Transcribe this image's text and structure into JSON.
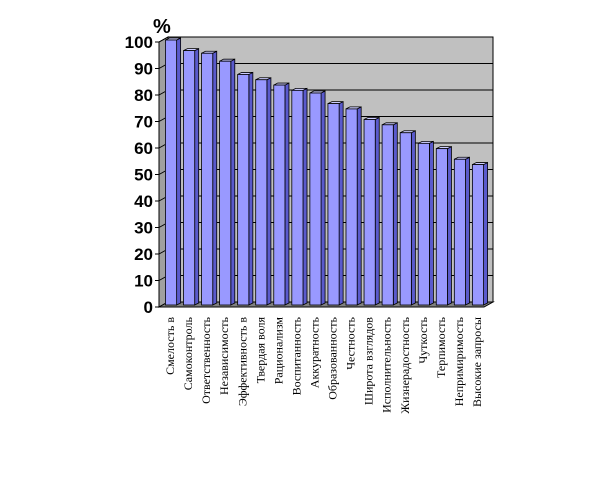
{
  "chart_data": {
    "type": "bar",
    "ylabel": "%",
    "ylim": [
      0,
      100
    ],
    "yticks": [
      0,
      10,
      20,
      30,
      40,
      50,
      60,
      70,
      80,
      90,
      100
    ],
    "grid": true,
    "legend": "none",
    "colors": {
      "plot_bg": "#c0c0c0",
      "bar_front": "#9999ff",
      "bar_side": "#5a5acc",
      "bar_top": "#ccccff",
      "floor": "#808080",
      "wall_side": "#a0a0a0"
    },
    "categories": [
      "Смелость в",
      "Самоконтроль",
      "Ответственность",
      "Независимость",
      "Эффективность в",
      "Твердая воля",
      "Рационализм",
      "Воспитанность",
      "Аккуратность",
      "Образованность",
      "Честность",
      "Широта взглядов",
      "Исполнительность",
      "Жизнерадостность",
      "Чуткость",
      "Терпимость",
      "Непримиримость",
      "Высокие запросы"
    ],
    "values": [
      100,
      96,
      95,
      92,
      87,
      85,
      83,
      81,
      80,
      76,
      74,
      70,
      68,
      65,
      61,
      59,
      55,
      53
    ]
  }
}
